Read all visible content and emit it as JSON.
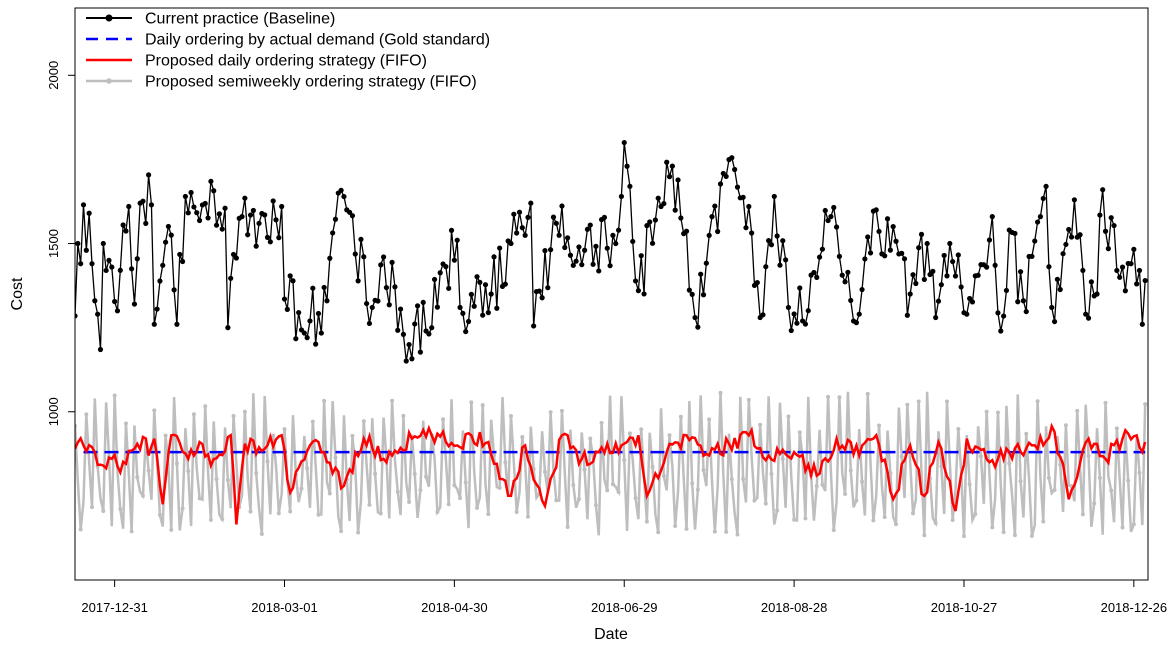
{
  "chart_data": {
    "type": "line",
    "title": "",
    "xlabel": "Date",
    "ylabel": "Cost",
    "x_range": [
      "2017-12-17",
      "2018-12-31"
    ],
    "ylim": [
      500,
      2200
    ],
    "x_ticks": [
      "2017-12-31",
      "2018-03-01",
      "2018-04-30",
      "2018-06-29",
      "2018-08-28",
      "2018-10-27",
      "2018-12-26"
    ],
    "y_ticks": [
      1000,
      1500,
      2000
    ],
    "grid": false,
    "legend_position": "top-left",
    "series": [
      {
        "name": "Current practice (Baseline)",
        "color": "#000000",
        "style": "solid-with-points",
        "anchors": [
          [
            "2017-12-17",
            1285
          ],
          [
            "2017-12-18",
            1500
          ],
          [
            "2017-12-19",
            1440
          ],
          [
            "2017-12-20",
            1615
          ],
          [
            "2017-12-21",
            1480
          ],
          [
            "2017-12-22",
            1590
          ],
          [
            "2017-12-23",
            1440
          ],
          [
            "2017-12-24",
            1330
          ],
          [
            "2017-12-25",
            1290
          ],
          [
            "2017-12-26",
            1185
          ],
          [
            "2017-12-27",
            1500
          ],
          [
            "2017-12-28",
            1420
          ],
          [
            "2017-12-29",
            1450
          ],
          [
            "2017-12-30",
            1430
          ],
          [
            "2018-01-01",
            1300
          ],
          [
            "2018-01-03",
            1555
          ],
          [
            "2018-01-05",
            1610
          ],
          [
            "2018-01-07",
            1320
          ],
          [
            "2018-01-09",
            1620
          ],
          [
            "2018-01-13",
            1615
          ],
          [
            "2018-01-14",
            1260
          ],
          [
            "2018-01-20",
            1525
          ],
          [
            "2018-01-22",
            1260
          ],
          [
            "2018-01-25",
            1640
          ],
          [
            "2018-02-09",
            1250
          ],
          [
            "2018-02-08",
            1605
          ],
          [
            "2018-02-14",
            1580
          ],
          [
            "2018-02-20",
            1560
          ],
          [
            "2018-02-28",
            1610
          ],
          [
            "2018-03-01",
            1335
          ],
          [
            "2018-03-10",
            1270
          ],
          [
            "2018-03-16",
            1330
          ],
          [
            "2018-03-20",
            1650
          ],
          [
            "2018-03-23",
            1600
          ],
          [
            "2018-04-01",
            1310
          ],
          [
            "2018-04-05",
            1460
          ],
          [
            "2018-04-12",
            1230
          ],
          [
            "2018-04-20",
            1240
          ],
          [
            "2018-05-01",
            1510
          ],
          [
            "2018-05-02",
            1310
          ],
          [
            "2018-05-13",
            1350
          ],
          [
            "2018-05-20",
            1500
          ],
          [
            "2018-05-27",
            1620
          ],
          [
            "2018-05-28",
            1255
          ],
          [
            "2018-06-05",
            1560
          ],
          [
            "2018-06-15",
            1480
          ],
          [
            "2018-06-26",
            1500
          ],
          [
            "2018-06-28",
            1640
          ],
          [
            "2018-06-29",
            1800
          ],
          [
            "2018-07-01",
            1670
          ],
          [
            "2018-07-04",
            1360
          ],
          [
            "2018-07-10",
            1570
          ],
          [
            "2018-07-12",
            1610
          ],
          [
            "2018-07-16",
            1730
          ],
          [
            "2018-07-24",
            1280
          ],
          [
            "2018-07-30",
            1580
          ],
          [
            "2018-08-07",
            1720
          ],
          [
            "2018-08-12",
            1610
          ],
          [
            "2018-08-16",
            1280
          ],
          [
            "2018-08-21",
            1640
          ],
          [
            "2018-08-26",
            1310
          ],
          [
            "2018-08-31",
            1270
          ],
          [
            "2018-09-10",
            1580
          ],
          [
            "2018-09-20",
            1290
          ],
          [
            "2018-09-26",
            1600
          ],
          [
            "2018-10-08",
            1350
          ],
          [
            "2018-10-14",
            1500
          ],
          [
            "2018-10-17",
            1280
          ],
          [
            "2018-10-22",
            1500
          ],
          [
            "2018-10-28",
            1290
          ],
          [
            "2018-11-06",
            1580
          ],
          [
            "2018-11-09",
            1240
          ],
          [
            "2018-11-12",
            1540
          ],
          [
            "2018-11-17",
            1330
          ],
          [
            "2018-11-23",
            1580
          ],
          [
            "2018-11-25",
            1670
          ],
          [
            "2018-11-27",
            1310
          ],
          [
            "2018-12-05",
            1630
          ],
          [
            "2018-12-09",
            1290
          ],
          [
            "2018-12-13",
            1350
          ],
          [
            "2018-12-15",
            1660
          ],
          [
            "2018-12-20",
            1420
          ],
          [
            "2018-12-25",
            1440
          ],
          [
            "2018-12-27",
            1380
          ],
          [
            "2018-12-28",
            1420
          ],
          [
            "2018-12-29",
            1260
          ],
          [
            "2018-12-30",
            1390
          ]
        ],
        "noise_amplitude": 90
      },
      {
        "name": "Daily ordering by actual demand (Gold standard)",
        "color": "#0000ff",
        "style": "dashed",
        "x": [
          "2017-12-20",
          "2018-12-30"
        ],
        "y": [
          880,
          880
        ]
      },
      {
        "name": "Proposed daily ordering strategy (FIFO)",
        "color": "#ff0000",
        "style": "solid",
        "anchors": [
          [
            "2017-12-17",
            890
          ],
          [
            "2017-12-20",
            900
          ],
          [
            "2017-12-24",
            880
          ],
          [
            "2017-12-27",
            840
          ],
          [
            "2017-12-30",
            860
          ],
          [
            "2018-01-02",
            820
          ],
          [
            "2018-01-07",
            890
          ],
          [
            "2018-01-10",
            925
          ],
          [
            "2018-01-12",
            870
          ],
          [
            "2018-01-14",
            920
          ],
          [
            "2018-01-17",
            725
          ],
          [
            "2018-01-20",
            930
          ],
          [
            "2018-01-26",
            860
          ],
          [
            "2018-01-30",
            910
          ],
          [
            "2018-02-03",
            840
          ],
          [
            "2018-02-10",
            930
          ],
          [
            "2018-02-12",
            665
          ],
          [
            "2018-02-15",
            905
          ],
          [
            "2018-02-22",
            890
          ],
          [
            "2018-02-28",
            930
          ],
          [
            "2018-03-03",
            760
          ],
          [
            "2018-03-10",
            900
          ],
          [
            "2018-03-15",
            880
          ],
          [
            "2018-03-22",
            780
          ],
          [
            "2018-03-29",
            920
          ],
          [
            "2018-04-05",
            860
          ],
          [
            "2018-04-15",
            920
          ],
          [
            "2018-04-22",
            930
          ],
          [
            "2018-05-01",
            900
          ],
          [
            "2018-05-06",
            930
          ],
          [
            "2018-05-12",
            910
          ],
          [
            "2018-05-17",
            800
          ],
          [
            "2018-05-20",
            750
          ],
          [
            "2018-05-25",
            900
          ],
          [
            "2018-06-01",
            720
          ],
          [
            "2018-06-07",
            930
          ],
          [
            "2018-06-14",
            860
          ],
          [
            "2018-06-20",
            880
          ],
          [
            "2018-06-28",
            900
          ],
          [
            "2018-07-04",
            930
          ],
          [
            "2018-07-07",
            750
          ],
          [
            "2018-07-14",
            880
          ],
          [
            "2018-07-21",
            930
          ],
          [
            "2018-07-29",
            870
          ],
          [
            "2018-08-05",
            905
          ],
          [
            "2018-08-12",
            930
          ],
          [
            "2018-08-19",
            870
          ],
          [
            "2018-08-28",
            880
          ],
          [
            "2018-09-05",
            810
          ],
          [
            "2018-09-12",
            920
          ],
          [
            "2018-09-20",
            870
          ],
          [
            "2018-09-26",
            930
          ],
          [
            "2018-10-02",
            740
          ],
          [
            "2018-10-08",
            900
          ],
          [
            "2018-10-13",
            750
          ],
          [
            "2018-10-18",
            910
          ],
          [
            "2018-10-24",
            705
          ],
          [
            "2018-10-28",
            920
          ],
          [
            "2018-11-05",
            850
          ],
          [
            "2018-11-12",
            880
          ],
          [
            "2018-11-20",
            900
          ],
          [
            "2018-11-28",
            940
          ],
          [
            "2018-12-03",
            740
          ],
          [
            "2018-12-10",
            920
          ],
          [
            "2018-12-16",
            860
          ],
          [
            "2018-12-22",
            920
          ],
          [
            "2018-12-27",
            930
          ],
          [
            "2018-12-29",
            880
          ],
          [
            "2018-12-30",
            910
          ]
        ],
        "noise_amplitude": 25
      },
      {
        "name": "Proposed semiweekly ordering strategy (FIFO)",
        "color": "#bebebe",
        "style": "solid-with-points",
        "pattern": "zigzag",
        "high_range": [
          920,
          1060
        ],
        "low_range": [
          630,
          780
        ],
        "x": [
          "2017-12-17",
          "2018-12-30"
        ]
      }
    ]
  }
}
